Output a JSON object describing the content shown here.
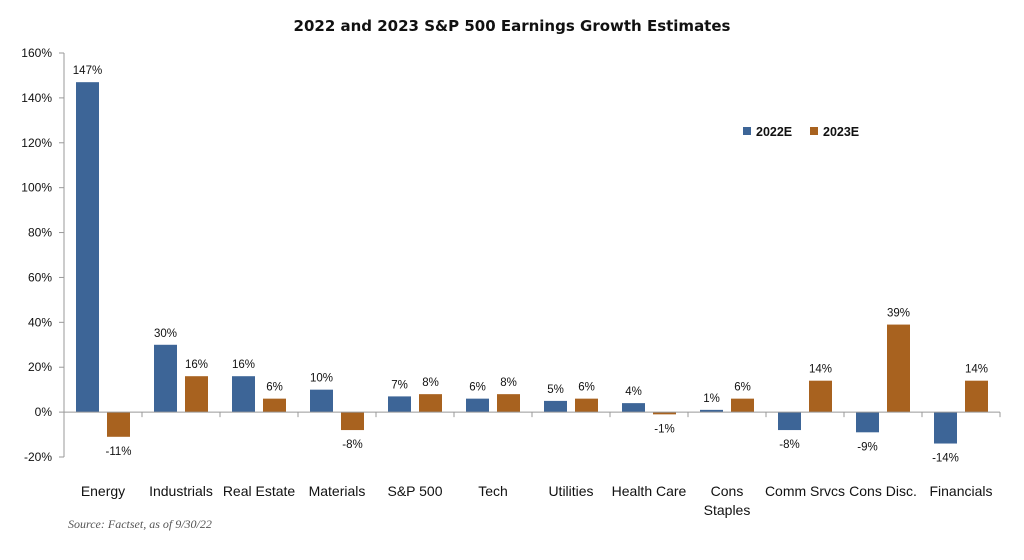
{
  "chart_data": {
    "type": "bar",
    "title": "2022 and 2023 S&P 500 Earnings Growth Estimates",
    "categories": [
      [
        "Energy"
      ],
      [
        "Industrials"
      ],
      [
        "Real Estate"
      ],
      [
        "Materials"
      ],
      [
        "S&P 500"
      ],
      [
        "Tech"
      ],
      [
        "Utilities"
      ],
      [
        "Health Care"
      ],
      [
        "Cons",
        "Staples"
      ],
      [
        "Comm Srvcs"
      ],
      [
        "Cons Disc."
      ],
      [
        "Financials"
      ]
    ],
    "series": [
      {
        "name": "2022E",
        "color": "#3d6597",
        "values": [
          147,
          30,
          16,
          10,
          7,
          6,
          5,
          4,
          1,
          -8,
          -9,
          -14
        ]
      },
      {
        "name": "2023E",
        "color": "#a8621f",
        "values": [
          -11,
          16,
          6,
          -8,
          8,
          8,
          6,
          -1,
          6,
          14,
          39,
          14
        ]
      }
    ],
    "ylim": [
      -20,
      160
    ],
    "yticks": [
      -20,
      0,
      20,
      40,
      60,
      80,
      100,
      120,
      140,
      160
    ],
    "y_format": "percent",
    "legend_position": "upper-right",
    "source": "Source:  Factset, as of 9/30/22"
  }
}
